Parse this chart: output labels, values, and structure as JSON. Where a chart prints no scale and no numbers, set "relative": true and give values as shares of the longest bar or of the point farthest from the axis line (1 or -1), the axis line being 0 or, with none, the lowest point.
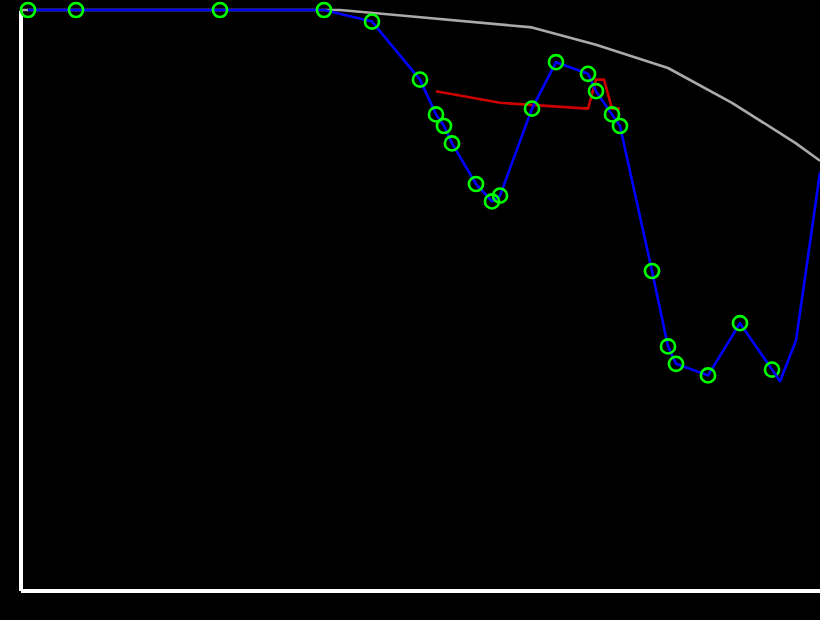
{
  "chart_data": {
    "type": "line",
    "relative": true,
    "categories": [
      null,
      null,
      null,
      null,
      null,
      null,
      null,
      null,
      null,
      null,
      null,
      null,
      null,
      null,
      null,
      null,
      null,
      null,
      null,
      null,
      null,
      null,
      null,
      null,
      null,
      null,
      null,
      null,
      null,
      null,
      null,
      null,
      null,
      null,
      null,
      null,
      null,
      null,
      null,
      null,
      null,
      null,
      null,
      null,
      null,
      null,
      null,
      null,
      null,
      null,
      null,
      null,
      null,
      null,
      null,
      null,
      null,
      null,
      null,
      null,
      null,
      null,
      null,
      null,
      null,
      null,
      null,
      null,
      null,
      null,
      null,
      null,
      null,
      null,
      null,
      null,
      null,
      null,
      null,
      null,
      null,
      null,
      null,
      null,
      null,
      null,
      null,
      null,
      null,
      null,
      null,
      null,
      null,
      null,
      null,
      null,
      null,
      null,
      null,
      null,
      null
    ],
    "series": [
      {
        "color": "#aaaaaa",
        "values": [
          1.0,
          null,
          null,
          null,
          null,
          null,
          null,
          null,
          null,
          null,
          null,
          null,
          null,
          null,
          null,
          null,
          null,
          null,
          null,
          null,
          null,
          null,
          null,
          null,
          null,
          1.0,
          null,
          null,
          null,
          null,
          null,
          null,
          null,
          null,
          null,
          null,
          null,
          null,
          null,
          null,
          1.0,
          null,
          null,
          null,
          null,
          null,
          null,
          null,
          0.99,
          null,
          null,
          null,
          null,
          null,
          null,
          null,
          null,
          null,
          null,
          null,
          null,
          null,
          null,
          null,
          0.97,
          null,
          null,
          null,
          null,
          null,
          null,
          null,
          0.94,
          null,
          null,
          null,
          null,
          null,
          null,
          null,
          null,
          0.9,
          null,
          null,
          null,
          null,
          null,
          null,
          null,
          0.84,
          null,
          null,
          null,
          null,
          null,
          null,
          null,
          0.77,
          null,
          null,
          0.74
        ]
      },
      {
        "color": "#cc0000",
        "values": [
          null,
          null,
          null,
          null,
          null,
          null,
          null,
          null,
          null,
          null,
          null,
          null,
          null,
          null,
          null,
          null,
          null,
          null,
          null,
          null,
          null,
          null,
          null,
          null,
          null,
          null,
          null,
          null,
          null,
          null,
          null,
          null,
          null,
          null,
          null,
          null,
          null,
          null,
          null,
          null,
          null,
          null,
          null,
          null,
          null,
          null,
          null,
          null,
          null,
          null,
          null,
          null,
          0.86,
          null,
          null,
          null,
          null,
          null,
          null,
          null,
          0.84,
          null,
          null,
          null,
          null,
          null,
          null,
          null,
          null,
          null,
          null,
          0.83,
          0.88,
          0.88,
          0.83,
          0.83,
          null,
          null,
          null,
          null,
          null,
          null,
          null,
          null,
          null,
          null,
          null,
          null,
          null,
          null,
          null,
          null,
          null,
          null,
          null,
          null,
          null,
          null,
          null,
          null,
          null
        ]
      },
      {
        "color": "#0000ff",
        "marker": "circle",
        "values": [
          null,
          1.0,
          null,
          null,
          null,
          null,
          null,
          1.0,
          null,
          null,
          null,
          null,
          null,
          null,
          null,
          null,
          null,
          null,
          null,
          null,
          null,
          null,
          null,
          null,
          null,
          1.0,
          null,
          null,
          null,
          null,
          null,
          null,
          null,
          null,
          null,
          null,
          null,
          null,
          1.0,
          null,
          null,
          null,
          null,
          null,
          0.98,
          null,
          null,
          null,
          null,
          null,
          0.88,
          null,
          0.82,
          0.8,
          0.77,
          null,
          null,
          0.7,
          null,
          0.67,
          0.68,
          null,
          null,
          null,
          0.83,
          null,
          null,
          0.91,
          null,
          null,
          null,
          0.89,
          0.86,
          null,
          0.82,
          0.8,
          null,
          null,
          null,
          0.55,
          null,
          0.42,
          0.39,
          null,
          null,
          null,
          0.37,
          null,
          null,
          null,
          0.46,
          null,
          null,
          null,
          0.38,
          null,
          null,
          null,
          null,
          null,
          null
        ]
      },
      {
        "color": "#0000ff",
        "values": [
          null,
          null,
          null,
          null,
          null,
          null,
          null,
          null,
          null,
          null,
          null,
          null,
          null,
          null,
          null,
          null,
          null,
          null,
          null,
          null,
          null,
          null,
          null,
          null,
          null,
          null,
          null,
          null,
          null,
          null,
          null,
          null,
          null,
          null,
          null,
          null,
          null,
          null,
          null,
          null,
          null,
          null,
          null,
          null,
          null,
          null,
          null,
          null,
          null,
          null,
          null,
          null,
          null,
          null,
          null,
          null,
          null,
          null,
          null,
          null,
          null,
          null,
          null,
          null,
          null,
          null,
          null,
          null,
          null,
          null,
          null,
          null,
          null,
          null,
          null,
          null,
          null,
          null,
          null,
          null,
          null,
          null,
          null,
          null,
          null,
          null,
          null,
          null,
          null,
          null,
          null,
          null,
          null,
          null,
          0.38,
          0.36,
          null,
          0.43,
          null,
          null,
          0.72
        ]
      }
    ]
  }
}
